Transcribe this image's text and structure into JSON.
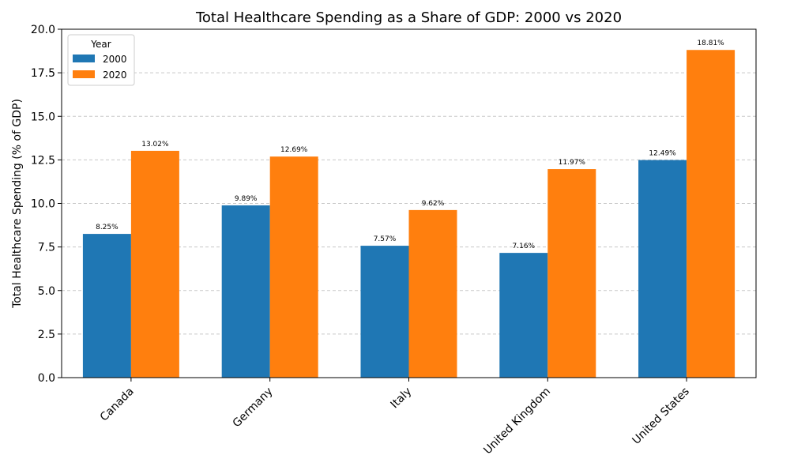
{
  "chart_data": {
    "type": "bar",
    "title": "Total Healthcare Spending as a Share of GDP: 2000 vs 2020",
    "xlabel": "",
    "ylabel": "Total Healthcare Spending (% of GDP)",
    "categories": [
      "Canada",
      "Germany",
      "Italy",
      "United Kingdom",
      "United States"
    ],
    "series": [
      {
        "name": "2000",
        "color": "#1f77b4",
        "values": [
          8.25,
          9.89,
          7.57,
          7.16,
          12.49
        ],
        "labels": [
          "8.25%",
          "9.89%",
          "7.57%",
          "7.16%",
          "12.49%"
        ]
      },
      {
        "name": "2020",
        "color": "#ff7f0e",
        "values": [
          13.02,
          12.69,
          9.62,
          11.97,
          18.81
        ],
        "labels": [
          "13.02%",
          "12.69%",
          "9.62%",
          "11.97%",
          "18.81%"
        ]
      }
    ],
    "ylim": [
      0,
      20
    ],
    "yticks": [
      "0.0",
      "2.5",
      "5.0",
      "7.5",
      "10.0",
      "12.5",
      "15.0",
      "17.5",
      "20.0"
    ],
    "grid": true,
    "legend": {
      "title": "Year",
      "position": "top-left"
    }
  }
}
